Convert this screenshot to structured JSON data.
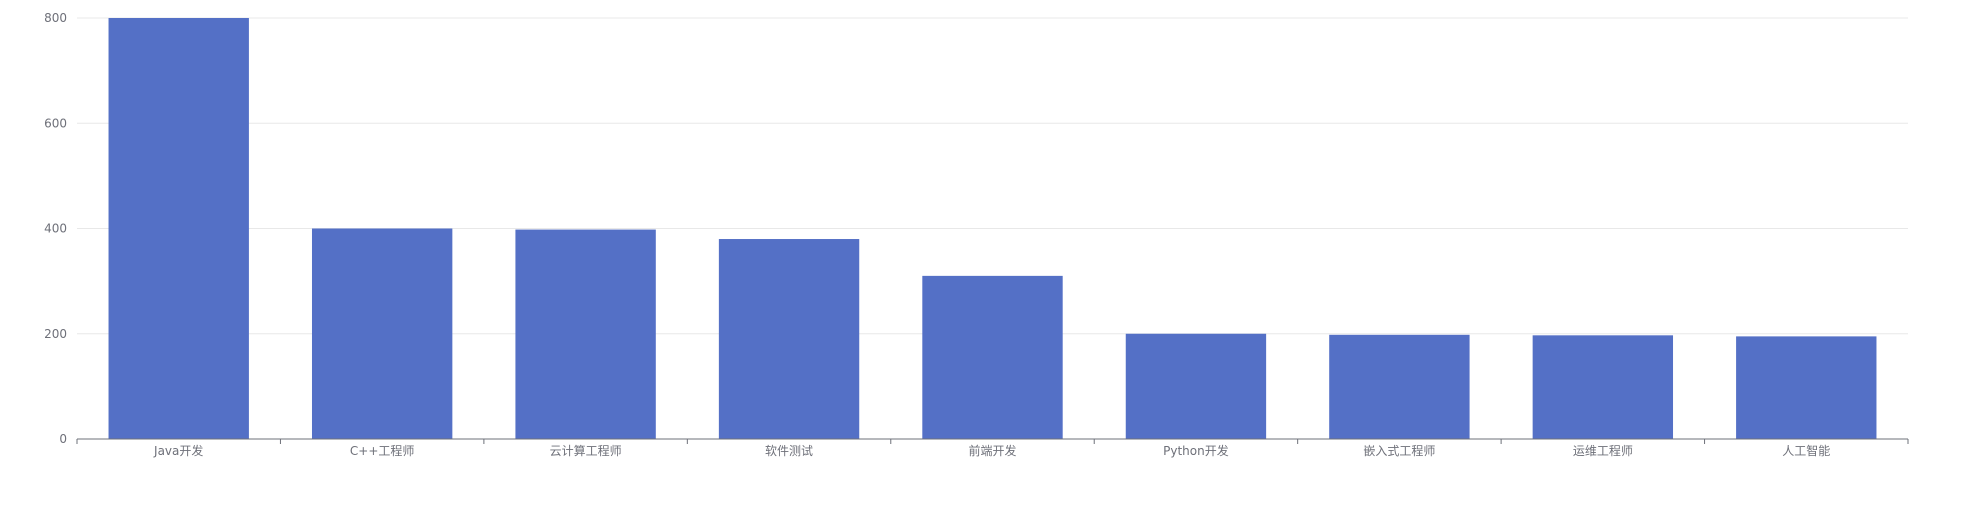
{
  "chart_data": {
    "type": "bar",
    "title": "",
    "xlabel": "",
    "ylabel": "",
    "categories": [
      "Java开发",
      "C++工程师",
      "云计算工程师",
      "软件测试",
      "前端开发",
      "Python开发",
      "嵌入式工程师",
      "运维工程师",
      "人工智能"
    ],
    "values": [
      800,
      400,
      398,
      380,
      310,
      200,
      198,
      197,
      195
    ],
    "ylim": [
      0,
      800
    ],
    "yticks": [
      0,
      200,
      400,
      600,
      800
    ],
    "ytick_labels": [
      "0",
      "200",
      "400",
      "600",
      "800"
    ],
    "grid": true,
    "bar_color": "#5470c6",
    "grid_color": "#e8e8e8",
    "axis_color": "#6e7079"
  }
}
